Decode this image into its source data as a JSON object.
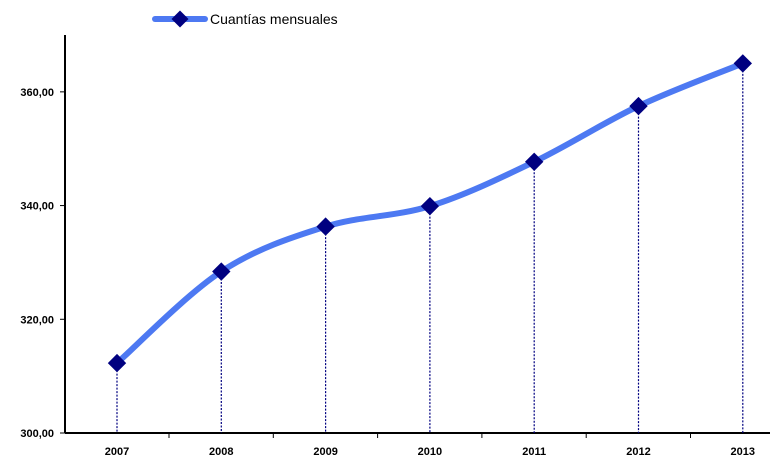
{
  "chart_data": {
    "type": "line",
    "title": "",
    "xlabel": "",
    "ylabel": "",
    "categories": [
      "2007",
      "2008",
      "2009",
      "2010",
      "2011",
      "2012",
      "2013"
    ],
    "series": [
      {
        "name": "Cuantías mensuales",
        "values": [
          312.3,
          328.4,
          336.3,
          339.9,
          347.7,
          357.5,
          365.0
        ],
        "color": "#4d79f2",
        "marker_color": "#000080"
      }
    ],
    "ylim": [
      300,
      370
    ],
    "y_ticks": [
      300,
      320,
      340,
      360
    ],
    "y_tick_labels": [
      "300,00",
      "320,00",
      "340,00",
      "360,00"
    ],
    "legend_position": "top-left",
    "drop_lines": true,
    "grid": false
  }
}
